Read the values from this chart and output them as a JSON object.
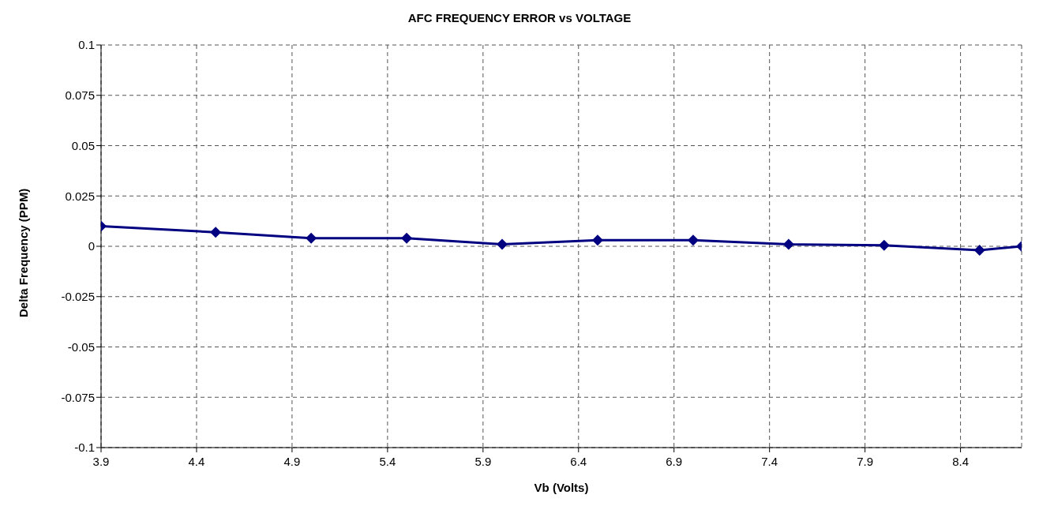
{
  "chart_data": {
    "type": "line",
    "title": "AFC FREQUENCY ERROR vs VOLTAGE",
    "xlabel": "Vb (Volts)",
    "ylabel": "Delta Frequency (PPM)",
    "x": [
      3.9,
      4.5,
      5.0,
      5.5,
      6.0,
      6.5,
      7.0,
      7.5,
      8.0,
      8.5,
      8.72
    ],
    "series": [
      {
        "color": "#000080",
        "values": [
          0.01,
          0.007,
          0.004,
          0.004,
          0.001,
          0.003,
          0.003,
          0.001,
          0.0005,
          -0.002,
          0
        ]
      }
    ],
    "xlim": [
      3.9,
      8.72
    ],
    "xticks": [
      3.9,
      4.4,
      4.9,
      5.4,
      5.9,
      6.4,
      6.9,
      7.4,
      7.9,
      8.4
    ],
    "ylim": [
      -0.1,
      0.1
    ],
    "yticks": [
      -0.1,
      -0.075,
      -0.05,
      -0.025,
      0,
      0.025,
      0.05,
      0.075,
      0.1
    ],
    "grid": true,
    "marker": "diamond",
    "line_style": "solid",
    "legend": false
  }
}
